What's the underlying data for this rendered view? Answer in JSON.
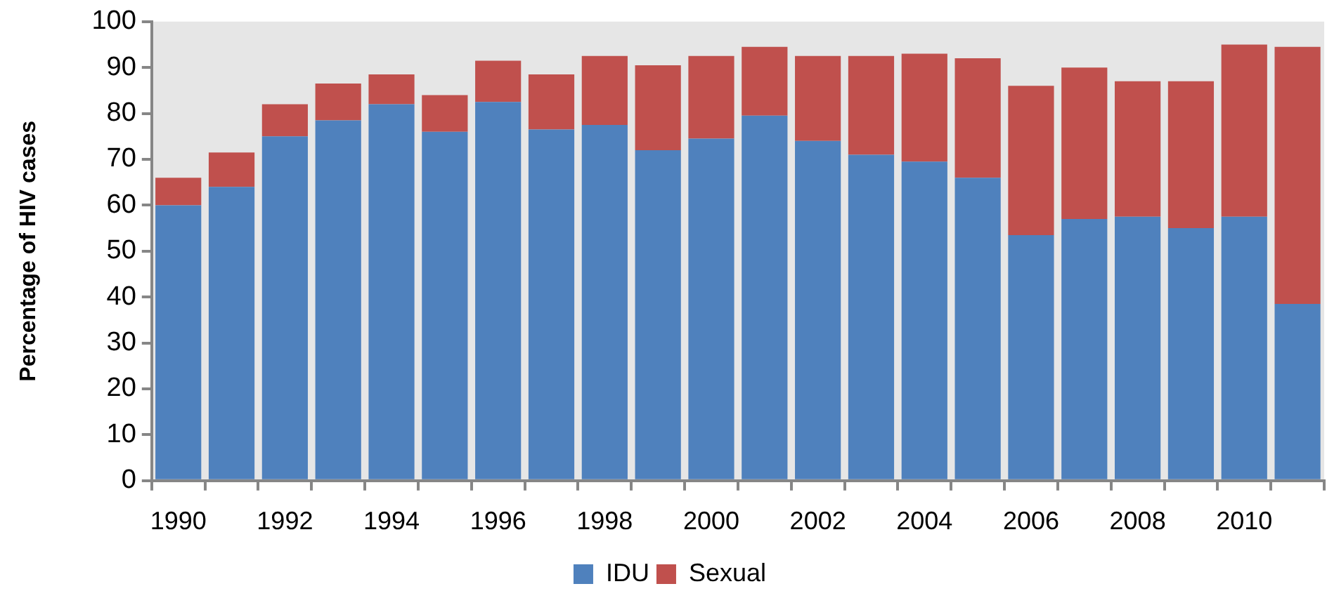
{
  "chart_data": {
    "type": "bar",
    "stacked": true,
    "ylabel": "Percentage of HIV cases",
    "categories": [
      "1990",
      null,
      "1992",
      null,
      "1994",
      null,
      "1996",
      null,
      "1998",
      null,
      "2000",
      null,
      "2002",
      null,
      "2004",
      null,
      "2006",
      null,
      "2008",
      null,
      "2010",
      null
    ],
    "series": [
      {
        "name": "IDU",
        "color": "#4f81bd",
        "values": [
          60,
          64,
          75,
          78.5,
          82,
          76,
          82.5,
          76.5,
          77.5,
          72,
          74.5,
          79.5,
          74,
          71,
          69.5,
          66,
          53.5,
          57,
          57.5,
          55,
          57.5,
          38.5
        ]
      },
      {
        "name": "Sexual",
        "color": "#c0504d",
        "values": [
          6,
          7.5,
          7,
          8,
          6.5,
          8,
          9,
          12,
          15,
          18.5,
          18,
          15,
          18.5,
          21.5,
          23.5,
          26,
          32.5,
          33,
          29.5,
          32,
          37.5,
          56
        ]
      }
    ],
    "ylim": [
      0,
      100
    ],
    "yticks": [
      0,
      10,
      20,
      30,
      40,
      50,
      60,
      70,
      80,
      90,
      100
    ],
    "legend": "bottom"
  }
}
